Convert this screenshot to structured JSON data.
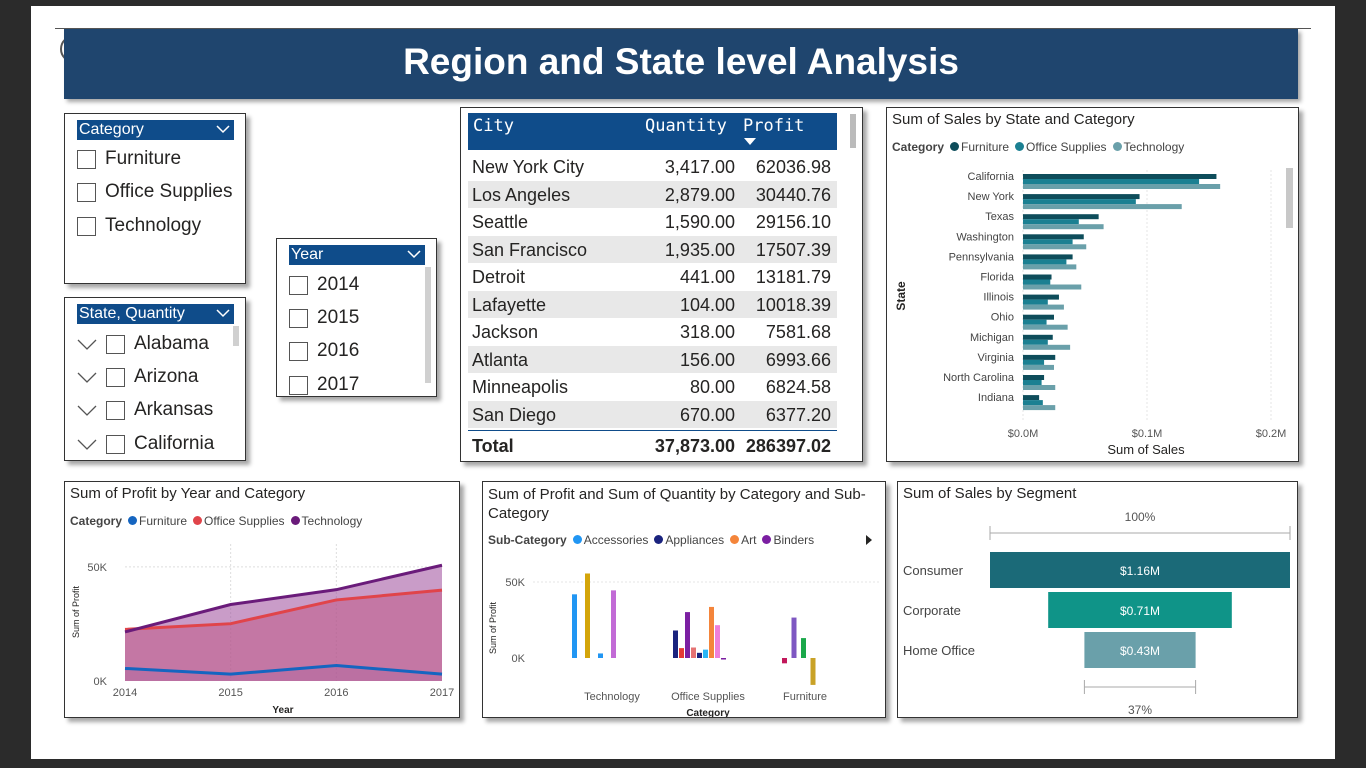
{
  "page": {
    "title": "Region and State level Analysis"
  },
  "colors": {
    "banner": "#1f456e",
    "slicer_header": "#0f4c8a",
    "furniture": "#0e4d5b",
    "office": "#1b8092",
    "technology": "#6aa0aa"
  },
  "category_slicer": {
    "header": "Category",
    "options": [
      "Furniture",
      "Office Supplies",
      "Technology"
    ]
  },
  "state_slicer": {
    "header": "State, Quantity",
    "options": [
      "Alabama",
      "Arizona",
      "Arkansas",
      "California"
    ]
  },
  "year_slicer": {
    "header": "Year",
    "options": [
      "2014",
      "2015",
      "2016",
      "2017"
    ]
  },
  "city_table": {
    "columns": [
      "City",
      "Quantity",
      "Profit"
    ],
    "rows": [
      {
        "city": "New York City",
        "quantity": "3,417.00",
        "profit": "62036.98"
      },
      {
        "city": "Los Angeles",
        "quantity": "2,879.00",
        "profit": "30440.76"
      },
      {
        "city": "Seattle",
        "quantity": "1,590.00",
        "profit": "29156.10"
      },
      {
        "city": "San Francisco",
        "quantity": "1,935.00",
        "profit": "17507.39"
      },
      {
        "city": "Detroit",
        "quantity": "441.00",
        "profit": "13181.79"
      },
      {
        "city": "Lafayette",
        "quantity": "104.00",
        "profit": "10018.39"
      },
      {
        "city": "Jackson",
        "quantity": "318.00",
        "profit": "7581.68"
      },
      {
        "city": "Atlanta",
        "quantity": "156.00",
        "profit": "6993.66"
      },
      {
        "city": "Minneapolis",
        "quantity": "80.00",
        "profit": "6824.58"
      },
      {
        "city": "San Diego",
        "quantity": "670.00",
        "profit": "6377.20"
      }
    ],
    "total": {
      "label": "Total",
      "quantity": "37,873.00",
      "profit": "286397.02"
    }
  },
  "chart_data": [
    {
      "type": "bar",
      "title": "Sum of Sales by State and Category",
      "legend_title": "Category",
      "xlabel": "Sum of Sales",
      "ylabel": "State",
      "xlim": [
        0,
        0.2
      ],
      "xticks": [
        "$0.0M",
        "$0.1M",
        "$0.2M"
      ],
      "categories": [
        "California",
        "New York",
        "Texas",
        "Washington",
        "Pennsylvania",
        "Florida",
        "Illinois",
        "Ohio",
        "Michigan",
        "Virginia",
        "North Carolina",
        "Indiana"
      ],
      "series": [
        {
          "name": "Furniture",
          "color": "#0e4d5b",
          "values": [
            0.156,
            0.094,
            0.061,
            0.049,
            0.04,
            0.023,
            0.029,
            0.025,
            0.024,
            0.026,
            0.017,
            0.013
          ]
        },
        {
          "name": "Office Supplies",
          "color": "#1b8092",
          "values": [
            0.142,
            0.091,
            0.045,
            0.04,
            0.035,
            0.022,
            0.02,
            0.019,
            0.02,
            0.017,
            0.015,
            0.016
          ]
        },
        {
          "name": "Technology",
          "color": "#6aa0aa",
          "values": [
            0.159,
            0.128,
            0.065,
            0.051,
            0.043,
            0.047,
            0.033,
            0.036,
            0.038,
            0.025,
            0.026,
            0.026
          ]
        }
      ]
    },
    {
      "type": "area",
      "title": "Sum of Profit by Year and Category",
      "legend_title": "Category",
      "xlabel": "Year",
      "ylabel": "Sum of Profit",
      "ylim": [
        0,
        60000
      ],
      "yticks": [
        "0K",
        "50K"
      ],
      "x": [
        "2014",
        "2015",
        "2016",
        "2017"
      ],
      "series": [
        {
          "name": "Furniture",
          "color": "#1565c0",
          "values": [
            5500,
            3000,
            6800,
            3000
          ]
        },
        {
          "name": "Office Supplies",
          "color": "#e0444a",
          "values": [
            22600,
            25100,
            35500,
            39800
          ]
        },
        {
          "name": "Technology",
          "color": "#6a1b7a",
          "values": [
            21500,
            33500,
            40000,
            50700
          ]
        }
      ]
    },
    {
      "type": "bar",
      "title": "Sum of Profit and Sum of Quantity by Category and Sub-Category",
      "legend_title": "Sub-Category",
      "xlabel": "Category",
      "ylabel": "Sum of Profit",
      "ylim": [
        -20000,
        65000
      ],
      "yticks": [
        "0K",
        "50K"
      ],
      "categories": [
        "Technology",
        "Office Supplies",
        "Furniture"
      ],
      "series": [
        {
          "name": "Accessories",
          "color": "#2196f3"
        },
        {
          "name": "Appliances",
          "color": "#1a237e"
        },
        {
          "name": "Art",
          "color": "#f4853b"
        },
        {
          "name": "Binders",
          "color": "#7b1fa2"
        }
      ],
      "bars": [
        {
          "category": "Technology",
          "color": "#2196f3",
          "value": 41900
        },
        {
          "category": "Technology",
          "color": "#d4a50a",
          "value": 55600
        },
        {
          "category": "Technology",
          "color": "#2196f3",
          "value": 3000
        },
        {
          "category": "Technology",
          "color": "#c26bd6",
          "value": 44500
        },
        {
          "category": "Office Supplies",
          "color": "#1a237e",
          "value": 18100
        },
        {
          "category": "Office Supplies",
          "color": "#e53935",
          "value": 6500
        },
        {
          "category": "Office Supplies",
          "color": "#7b1fa2",
          "value": 30200
        },
        {
          "category": "Office Supplies",
          "color": "#e57373",
          "value": 6900
        },
        {
          "category": "Office Supplies",
          "color": "#1a237e",
          "value": 3400
        },
        {
          "category": "Office Supplies",
          "color": "#29b6f6",
          "value": 5500
        },
        {
          "category": "Office Supplies",
          "color": "#f4853b",
          "value": 33600
        },
        {
          "category": "Office Supplies",
          "color": "#ef7fd9",
          "value": 21600
        },
        {
          "category": "Office Supplies",
          "color": "#7b1fa2",
          "value": -1000
        },
        {
          "category": "Furniture",
          "color": "#c2185b",
          "value": -3500
        },
        {
          "category": "Furniture",
          "color": "#7e57c2",
          "value": 26600
        },
        {
          "category": "Furniture",
          "color": "#1ba84a",
          "value": 13100
        },
        {
          "category": "Furniture",
          "color": "#c9a227",
          "value": -17700
        }
      ]
    },
    {
      "type": "bar",
      "title": "Sum of Sales by Segment",
      "categories": [
        "Consumer",
        "Corporate",
        "Home Office"
      ],
      "values": [
        1.16,
        0.71,
        0.43
      ],
      "labels": [
        "$1.16M",
        "$0.71M",
        "$0.43M"
      ],
      "colors": [
        "#1b6a78",
        "#0f9488",
        "#6aa0aa"
      ],
      "top_label": "100%",
      "bottom_label": "37%"
    }
  ]
}
